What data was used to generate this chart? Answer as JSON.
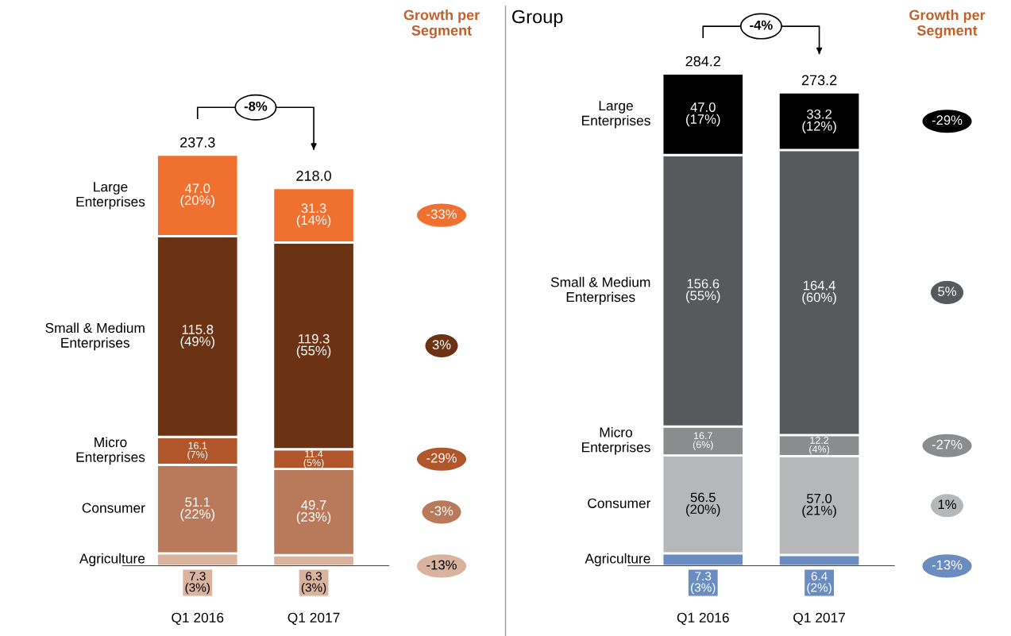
{
  "chart_data": [
    {
      "type": "bar",
      "stacked": true,
      "categories": [
        "Q1 2016",
        "Q1 2017"
      ],
      "totals": [
        "237.3",
        "218.0"
      ],
      "annotations": [
        "Growth per\nSegment",
        "-8%",
        "-13%",
        "-3%",
        "-29%",
        "3%",
        "-33%"
      ],
      "series": [
        {
          "name": "Agriculture",
          "color": "#d9b39e",
          "values": [
            7.3,
            6.3
          ],
          "value_labels": [
            "7.3\n(3%)",
            "6.3\n(3%)"
          ]
        },
        {
          "name": "Consumer",
          "color": "#b87a5a",
          "values": [
            51.1,
            49.7
          ],
          "value_labels": [
            "51.1\n(22%)",
            "49.7\n(23%)"
          ]
        },
        {
          "name": "Micro\nEnterprises",
          "color": "#b0562a",
          "values": [
            16.1,
            11.4
          ],
          "value_labels": [
            "16.1\n(7%)",
            "11.4\n(5%)"
          ]
        },
        {
          "name": "Small & Medium\nEnterprises",
          "color": "#6b3313",
          "values": [
            115.8,
            119.3
          ],
          "value_labels": [
            "115.8\n(49%)",
            "119.3\n(55%)"
          ]
        },
        {
          "name": "Large\nEnterprises",
          "color": "#f07030",
          "values": [
            47.0,
            31.3
          ],
          "value_labels": [
            "47.0\n(20%)",
            "31.3\n(14%)"
          ]
        }
      ]
    },
    {
      "type": "bar",
      "stacked": true,
      "title": "Group",
      "categories": [
        "Q1 2016",
        "Q1 2017"
      ],
      "totals": [
        "284.2",
        "273.2"
      ],
      "annotations": [
        "Growth per\nSegment",
        "-4%",
        "-13%",
        "1%",
        "-27%",
        "5%",
        "-29%"
      ],
      "series": [
        {
          "name": "Agriculture",
          "color": "#6a8cc0",
          "values": [
            7.3,
            6.4
          ],
          "value_labels": [
            "7.3\n(3%)",
            "6.4\n(2%)"
          ]
        },
        {
          "name": "Consumer",
          "color": "#b5b7b8",
          "values": [
            56.5,
            57.0
          ],
          "value_labels": [
            "56.5\n(20%)",
            "57.0\n(21%)"
          ]
        },
        {
          "name": "Micro\nEnterprises",
          "color": "#8a8c8e",
          "values": [
            16.7,
            12.2
          ],
          "value_labels": [
            "16.7\n(6%)",
            "12.2\n(4%)"
          ]
        },
        {
          "name": "Small & Medium\nEnterprises",
          "color": "#575a5c",
          "values": [
            156.6,
            164.4
          ],
          "value_labels": [
            "156.6\n(55%)",
            "164.4\n(60%)"
          ]
        },
        {
          "name": "Large\nEnterprises",
          "color": "#000000",
          "values": [
            47.0,
            33.2
          ],
          "value_labels": [
            "47.0\n(17%)",
            "33.2\n(12%)"
          ]
        }
      ]
    }
  ]
}
